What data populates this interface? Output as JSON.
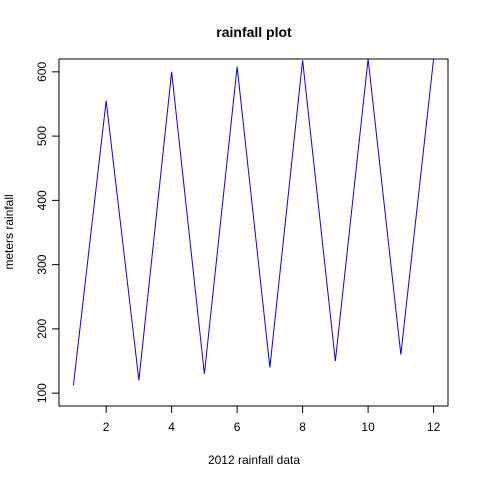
{
  "chart_data": {
    "type": "line",
    "title": "rainfall plot",
    "xlabel": "2012 rainfall data",
    "ylabel": "meters rainfall",
    "x": [
      1,
      2,
      3,
      4,
      5,
      6,
      7,
      8,
      9,
      10,
      11,
      12
    ],
    "series": [
      {
        "values": [
          112,
          555,
          120,
          600,
          130,
          608,
          140,
          618,
          150,
          620,
          160,
          620
        ],
        "color": "#0000ff"
      }
    ],
    "xlim": [
      0.56,
      12.44
    ],
    "ylim": [
      80,
      620
    ],
    "x_ticks": [
      2,
      4,
      6,
      8,
      10,
      12
    ],
    "y_ticks": [
      100,
      200,
      300,
      400,
      500,
      600
    ],
    "grid": false,
    "legend": "none"
  }
}
